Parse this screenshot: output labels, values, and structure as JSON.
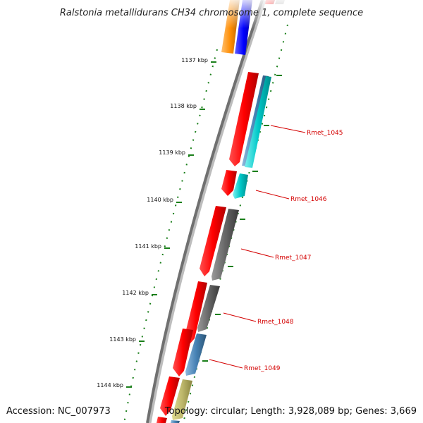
{
  "title": "Ralstonia metallidurans CH34 chromosome 1, complete sequence",
  "accession": "Accession: NC_007973",
  "topology": "Topology: circular; Length: 3,928,089 bp; Genes: 3,669",
  "ticks": [
    {
      "label": "1137 kbp"
    },
    {
      "label": "1138 kbp"
    },
    {
      "label": "1139 kbp"
    },
    {
      "label": "1140 kbp"
    },
    {
      "label": "1141 kbp"
    },
    {
      "label": "1142 kbp"
    },
    {
      "label": "1143 kbp"
    },
    {
      "label": "1144 kbp"
    }
  ],
  "gene_labels": [
    {
      "name": "Rmet_1045"
    },
    {
      "name": "Rmet_1046"
    },
    {
      "name": "Rmet_1047"
    },
    {
      "name": "Rmet_1048"
    },
    {
      "name": "Rmet_1049"
    }
  ],
  "colors": {
    "backbone": "#7a7a7a",
    "cds": "#ff0000",
    "cog_cyan": "#00c8c8",
    "cog_steel": "#4682b4",
    "cog_gray": "#555555",
    "cog_khaki": "#b5b04a",
    "cog_orange": "#ff8c00",
    "cog_blue": "#0000ff",
    "tick": "#1a7f1a",
    "label_line": "#d40000"
  }
}
